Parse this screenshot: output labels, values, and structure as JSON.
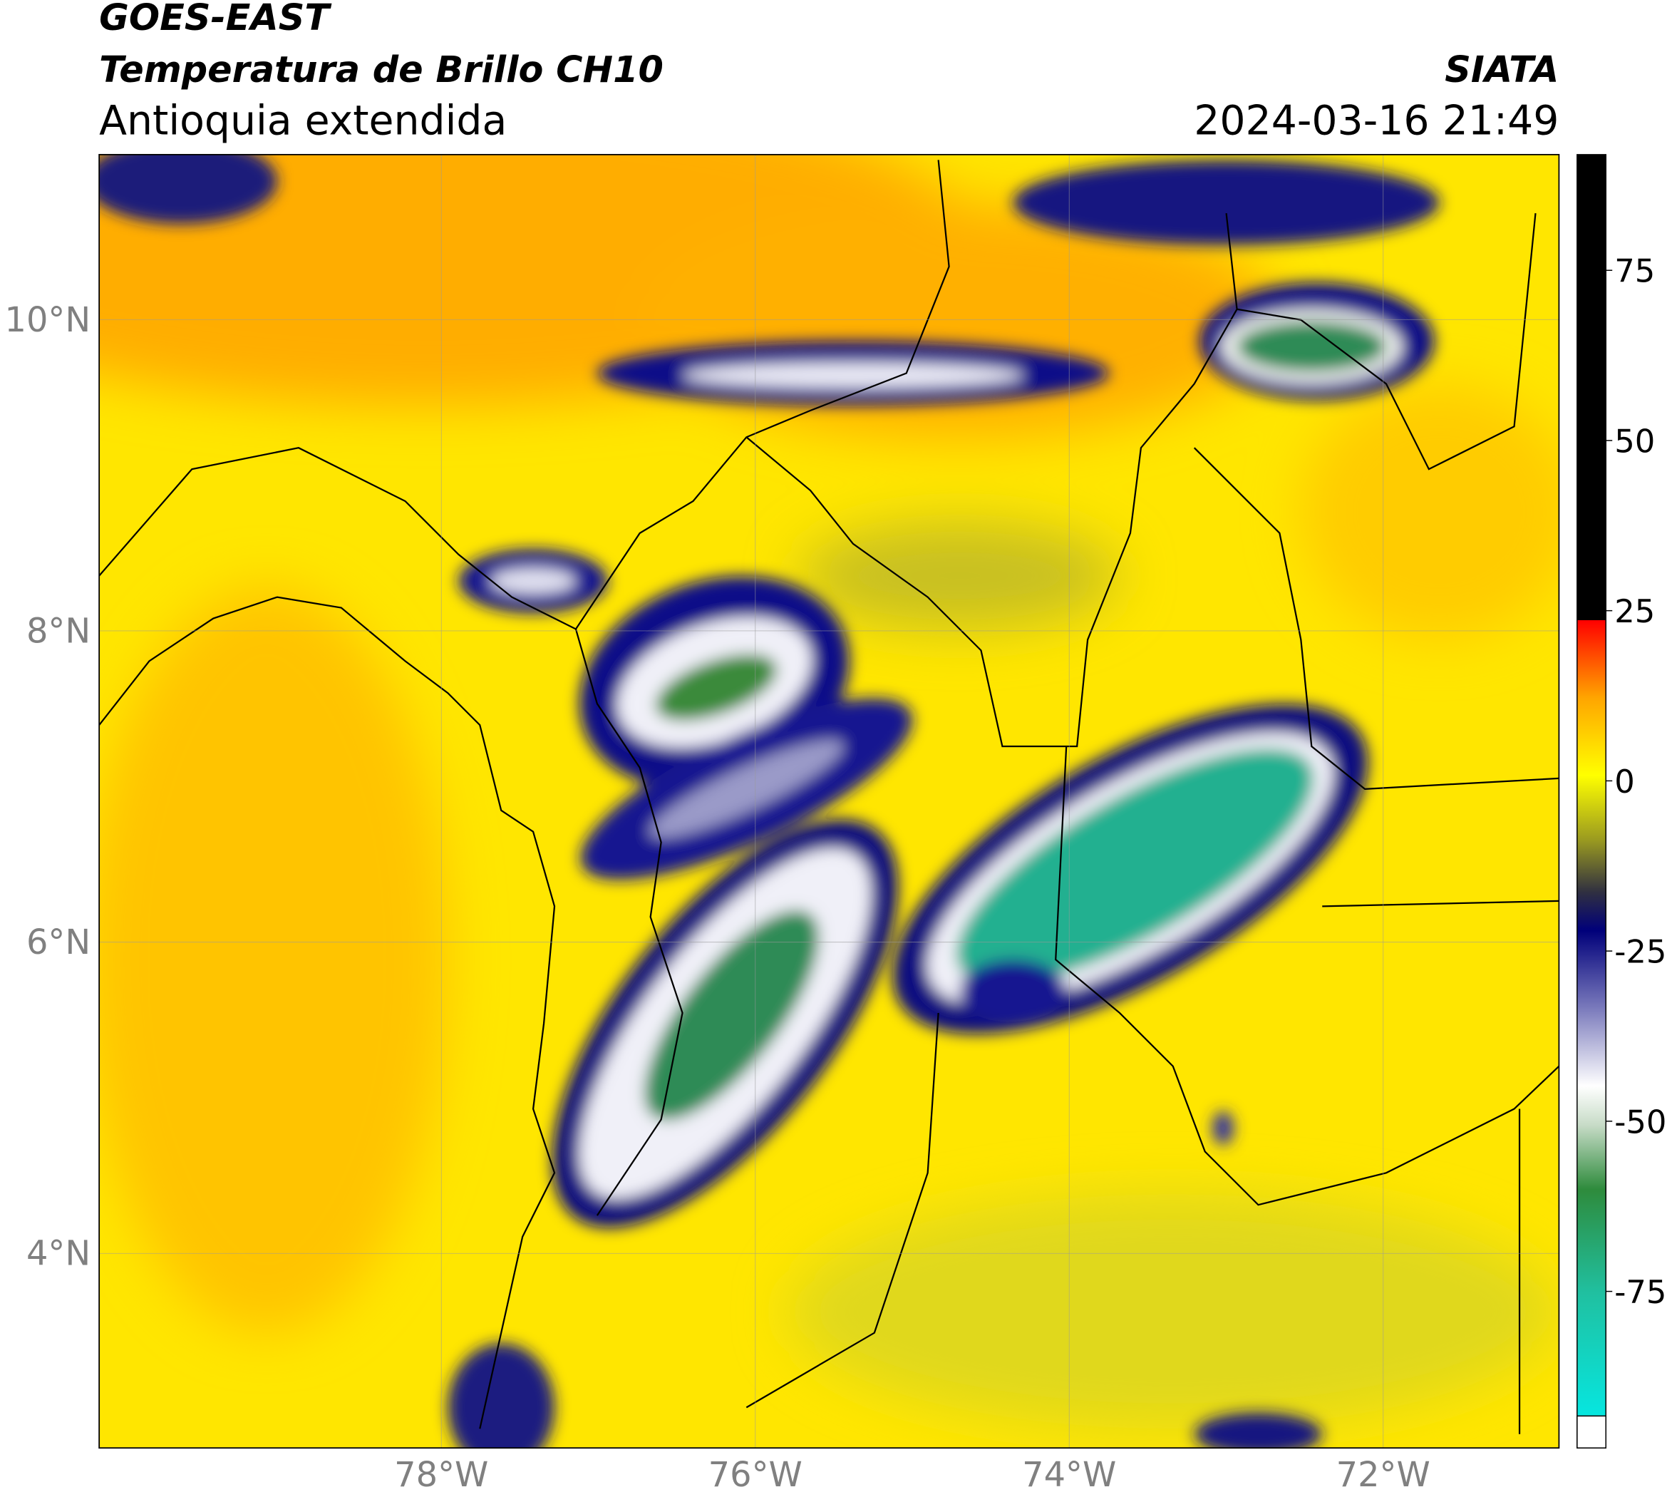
{
  "header": {
    "satellite": "GOES-EAST",
    "product": "Temperatura de Brillo CH10",
    "region": "Antioquia extendida",
    "source": "SIATA",
    "datetime": "2024-03-16 21:49"
  },
  "map": {
    "xlim": [
      -80.18,
      -70.88
    ],
    "ylim": [
      2.75,
      11.06
    ],
    "xticks": [
      {
        "value": -78,
        "label": "78°W"
      },
      {
        "value": -76,
        "label": "76°W"
      },
      {
        "value": -74,
        "label": "74°W"
      },
      {
        "value": -72,
        "label": "72°W"
      }
    ],
    "yticks": [
      {
        "value": 4,
        "label": "4°N"
      },
      {
        "value": 6,
        "label": "6°N"
      },
      {
        "value": 8,
        "label": "8°N"
      },
      {
        "value": 10,
        "label": "10°N"
      }
    ],
    "grid": true
  },
  "colorbar": {
    "range": [
      -98,
      92
    ],
    "ticks": [
      -75,
      -50,
      -25,
      0,
      25,
      50,
      75
    ]
  }
}
